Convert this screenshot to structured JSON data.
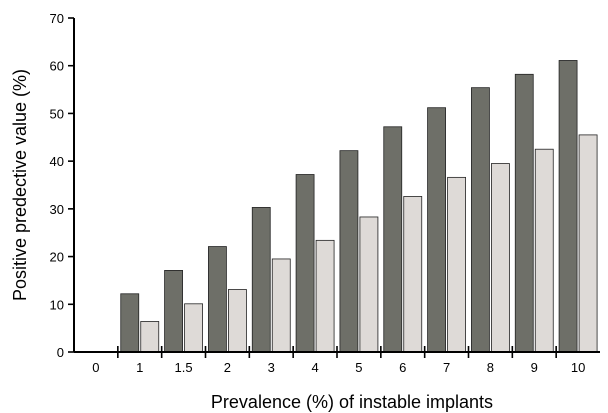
{
  "chart_data": {
    "type": "bar",
    "xlabel": "Prevalence (%) of instable implants",
    "ylabel": "Positive predective value (%)",
    "categories": [
      "0",
      "1",
      "1.5",
      "2",
      "3",
      "4",
      "5",
      "6",
      "7",
      "8",
      "9",
      "10"
    ],
    "series": [
      {
        "values": [
          null,
          12.2,
          17.1,
          22.1,
          30.3,
          37.2,
          42.2,
          47.2,
          51.2,
          55.4,
          58.2,
          61.1
        ],
        "color": "#6e6f68"
      },
      {
        "values": [
          null,
          6.4,
          10.1,
          13.1,
          19.5,
          23.4,
          28.3,
          32.6,
          36.6,
          39.5,
          42.5,
          45.5
        ],
        "color": "#dedad7"
      }
    ],
    "ylim": [
      0,
      70
    ],
    "yticks": [
      0,
      10,
      20,
      30,
      40,
      50,
      60,
      70
    ],
    "grid": false,
    "legend": "none"
  }
}
